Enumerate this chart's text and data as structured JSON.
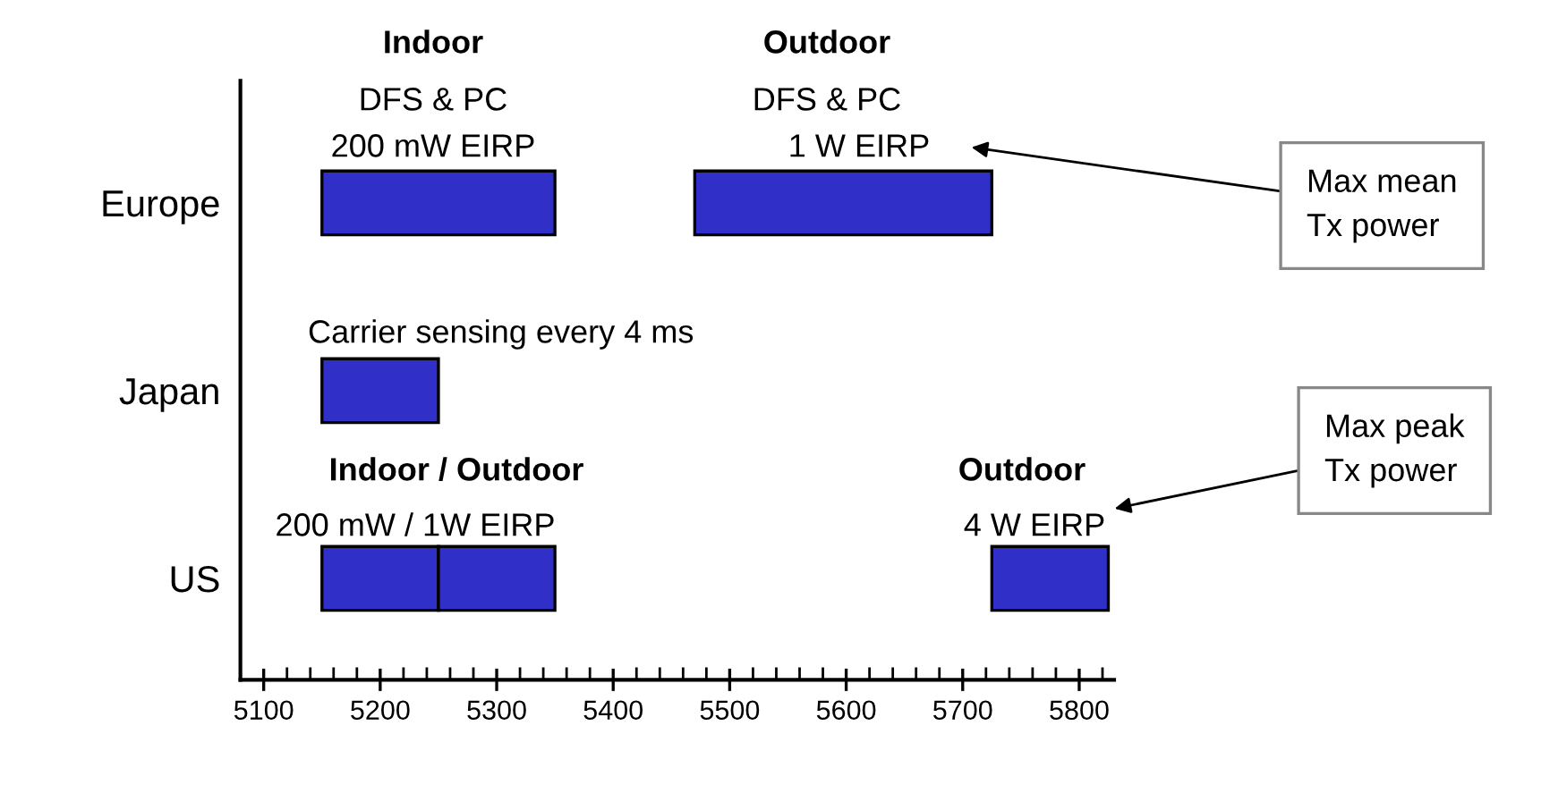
{
  "chart_data": {
    "type": "bar",
    "orientation": "horizontal",
    "categories": [
      "Europe",
      "Japan",
      "US"
    ],
    "series": [
      {
        "color": "#3030c8",
        "base": [
          5150,
          5150,
          5150
        ],
        "values": [
          200,
          100,
          100
        ]
      },
      {
        "color": "#3030c8",
        "base": [
          5470,
          null,
          5250
        ],
        "values": [
          255,
          null,
          100
        ]
      },
      {
        "color": "#3030c8",
        "base": [
          null,
          null,
          5725
        ],
        "values": [
          null,
          null,
          100
        ]
      }
    ],
    "xlim": [
      5080,
      5830
    ],
    "xticks": [
      5100,
      5200,
      5300,
      5400,
      5500,
      5600,
      5700,
      5800
    ],
    "grid": false,
    "legend": false,
    "annotations": [
      "Indoor",
      "DFS & PC",
      "200 mW EIRP",
      "Outdoor",
      "DFS & PC",
      "1 W EIRP",
      "Carrier sensing every 4 ms",
      "Indoor / Outdoor",
      "200 mW / 1W EIRP",
      "Outdoor",
      "4 W EIRP",
      "Max mean\nTx power",
      "Max peak\nTx power"
    ]
  }
}
